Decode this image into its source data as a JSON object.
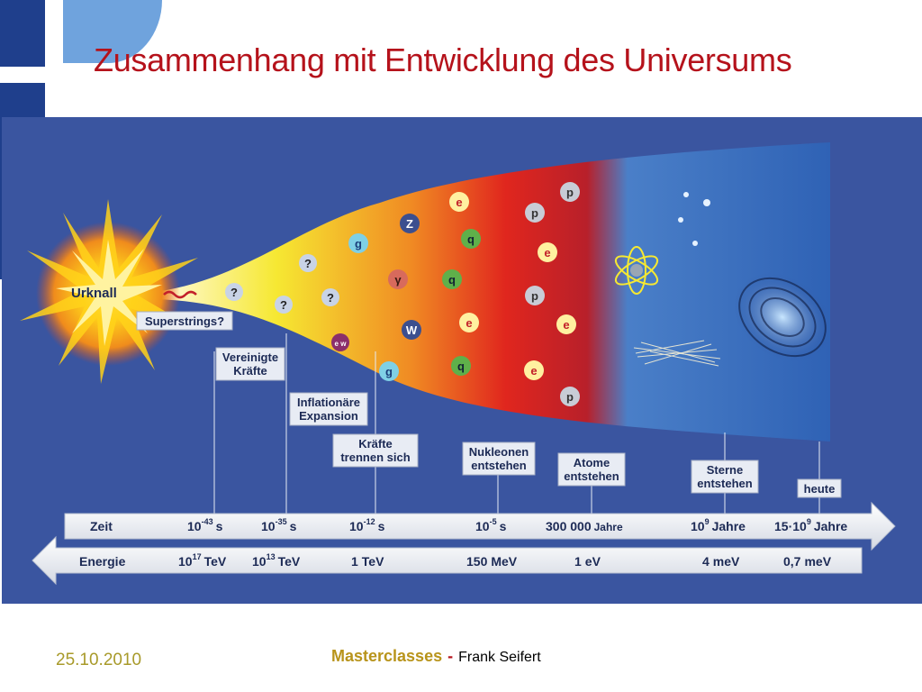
{
  "slide": {
    "title": "Zusammenhang mit Entwicklung des Universums",
    "footer": {
      "date": "25.10.2010",
      "brand": "Masterclasses",
      "separator": "-",
      "author": "Frank Seifert"
    }
  },
  "figure": {
    "big_bang": "Urknall",
    "labels": {
      "superstrings": "Superstrings?",
      "forces_1": "Vereinigte",
      "forces_2": "Kräfte",
      "inflation_1": "Inflationäre",
      "inflation_2": "Expansion",
      "separate_1": "Kräfte",
      "separate_2": "trennen sich",
      "nucleons_1": "Nukleonen",
      "nucleons_2": "entstehen",
      "atoms_1": "Atome",
      "atoms_2": "entstehen",
      "stars_1": "Sterne",
      "stars_2": "entstehen",
      "today": "heute"
    },
    "time_axis": {
      "label": "Zeit",
      "ticks": [
        {
          "base": "10",
          "exp": "-43",
          "unit": "s"
        },
        {
          "base": "10",
          "exp": "-35",
          "unit": "s"
        },
        {
          "base": "10",
          "exp": "-12",
          "unit": "s"
        },
        {
          "base": "10",
          "exp": "-5",
          "unit": "s"
        },
        {
          "base": "300 000",
          "exp": "",
          "unit": "Jahre"
        },
        {
          "base": "10",
          "exp": "9",
          "unit": "Jahre"
        },
        {
          "base": "15·10",
          "exp": "9",
          "unit": "Jahre"
        }
      ]
    },
    "energy_axis": {
      "label": "Energie",
      "ticks": [
        {
          "base": "10",
          "exp": "17",
          "unit": "TeV"
        },
        {
          "base": "10",
          "exp": "13",
          "unit": "TeV"
        },
        {
          "base": "1",
          "exp": "",
          "unit": "TeV"
        },
        {
          "base": "150",
          "exp": "",
          "unit": "MeV"
        },
        {
          "base": "1",
          "exp": "",
          "unit": "eV"
        },
        {
          "base": "4",
          "exp": "",
          "unit": "meV"
        },
        {
          "base": "0,7",
          "exp": "",
          "unit": "meV"
        }
      ]
    },
    "particles": {
      "q1": "?",
      "q2": "?",
      "q3": "?",
      "q4": "?",
      "g": "g",
      "z": "Z",
      "gamma": "γ",
      "w": "W",
      "ew": "e w",
      "q": "q",
      "e": "e",
      "p": "p"
    }
  }
}
